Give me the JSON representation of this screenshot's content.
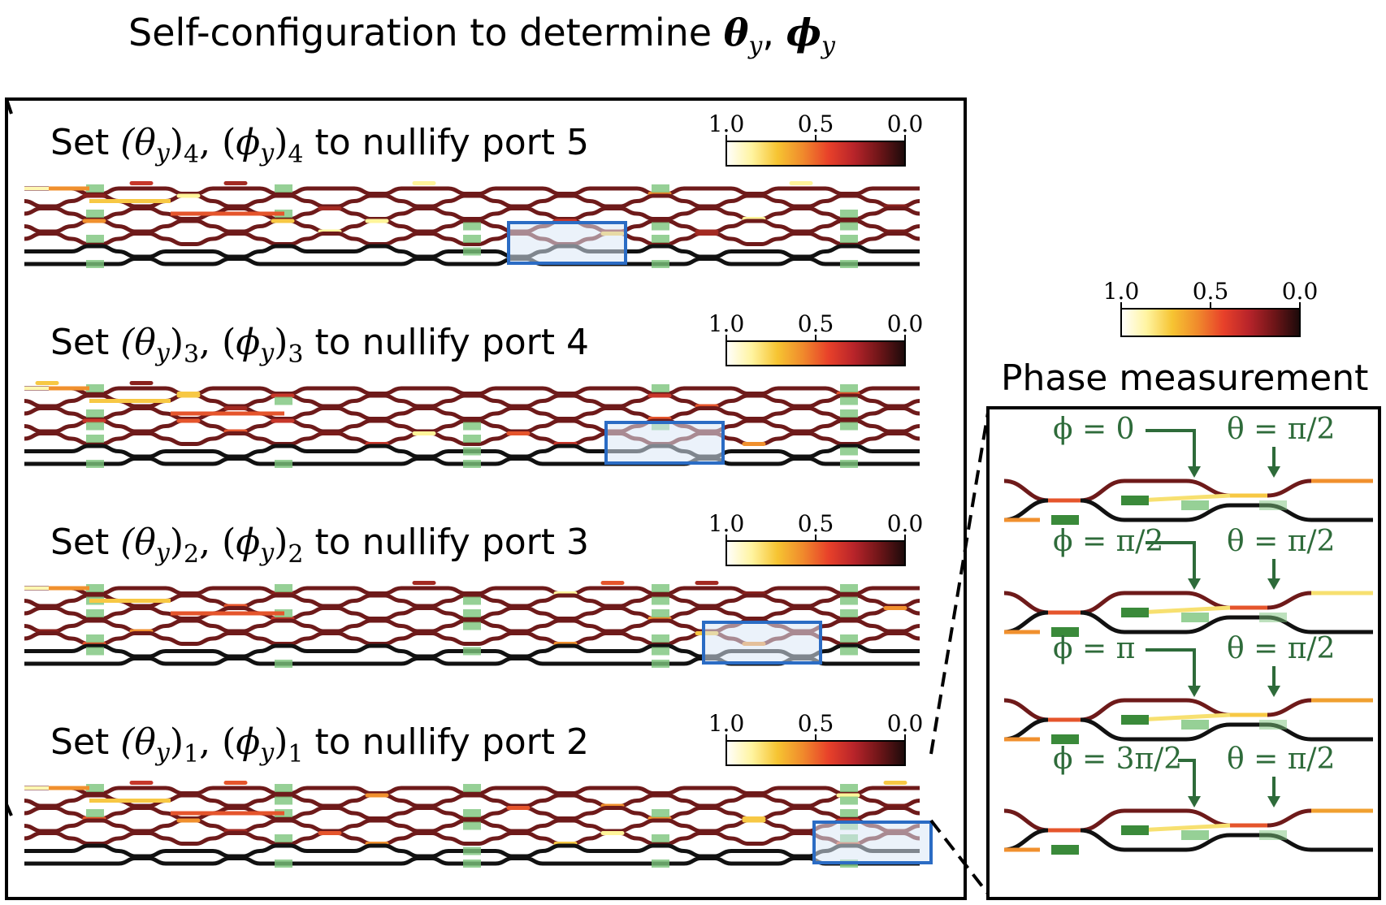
{
  "title": "Self-configuration to determine θy, ϕy",
  "title_parts": {
    "text": "Self-configuration to determine ",
    "theta": "θ",
    "phi": "ϕ",
    "sub": "y",
    "comma": ", "
  },
  "colorbar_ticks": [
    "1.0",
    "0.5",
    "0.0"
  ],
  "colormap": [
    "#ffffff",
    "#fff4a0",
    "#f6c432",
    "#f08a2c",
    "#e8412a",
    "#b8242a",
    "#6e1518",
    "#1a0a0a"
  ],
  "panels": [
    {
      "prefix": "Set ",
      "idx": "4",
      "suffix": "to nullify port 5"
    },
    {
      "prefix": "Set ",
      "idx": "3",
      "suffix": "to nullify port 4"
    },
    {
      "prefix": "Set ",
      "idx": "2",
      "suffix": "to nullify port 3"
    },
    {
      "prefix": "Set ",
      "idx": "1",
      "suffix": "to nullify port 2"
    }
  ],
  "phase_measurement": {
    "title": "Phase measurement",
    "rows": [
      {
        "phi": "ϕ = 0",
        "theta": "θ = π/2"
      },
      {
        "phi": "ϕ = π/2",
        "theta": "θ = π/2"
      },
      {
        "phi": "ϕ = π",
        "theta": "θ = π/2"
      },
      {
        "phi": "ϕ = 3π/2",
        "theta": "θ = π/2"
      }
    ]
  },
  "colors": {
    "dark_waveguide": "#6e1a1a",
    "black_waveguide": "#111111",
    "phase_shifter": "#7cc47c",
    "highlight_box": "#2b6cc4",
    "highlight_fill": "#dbe8f6",
    "annotation_green": "#2e6b3a"
  }
}
